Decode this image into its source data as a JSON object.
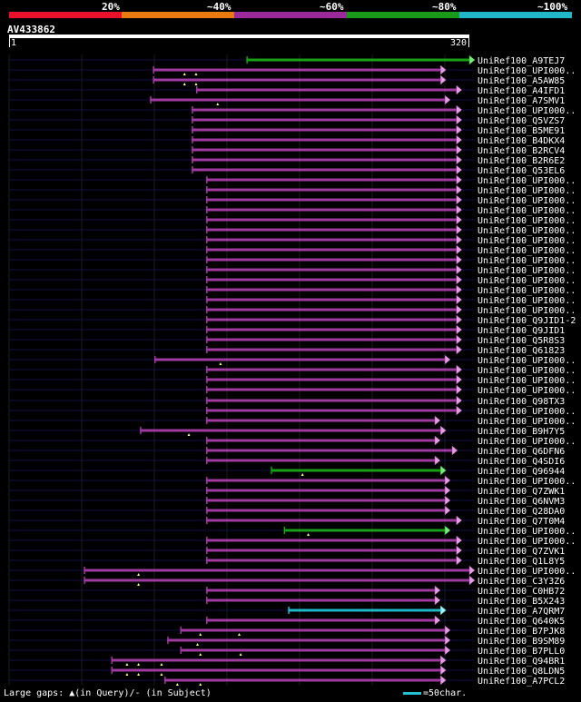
{
  "legend": {
    "labels": [
      "20%",
      "~40%",
      "~60%",
      "~80%",
      "~100%"
    ],
    "colors": [
      "#e8102a",
      "#e87a10",
      "#9a2a9a",
      "#1a9a1a",
      "#20b8c8"
    ]
  },
  "query": {
    "id": "AV433862",
    "start": "1",
    "end": "320"
  },
  "footer": {
    "gaps": "Large gaps: ▲(in Query)/- (in Subject)",
    "scale": "=50char."
  },
  "hits": [
    {
      "name": "UniRef100_A9TEJ7",
      "start": 165,
      "end": 320,
      "color": "green",
      "marks": []
    },
    {
      "name": "UniRef100_UPI000..",
      "start": 100,
      "end": 300,
      "color": "purple",
      "marks": [
        122,
        130
      ]
    },
    {
      "name": "UniRef100_A5AW85",
      "start": 100,
      "end": 300,
      "color": "purple",
      "marks": [
        122,
        130
      ]
    },
    {
      "name": "UniRef100_A4IFD1",
      "start": 130,
      "end": 311,
      "color": "purple",
      "marks": []
    },
    {
      "name": "UniRef100_A7SMV1",
      "start": 98,
      "end": 303,
      "color": "purple",
      "marks": [
        145
      ]
    },
    {
      "name": "UniRef100_UPI000..",
      "start": 127,
      "end": 311,
      "color": "purple",
      "marks": []
    },
    {
      "name": "UniRef100_Q5VZS7",
      "start": 127,
      "end": 311,
      "color": "purple",
      "marks": []
    },
    {
      "name": "UniRef100_B5ME91",
      "start": 127,
      "end": 311,
      "color": "purple",
      "marks": []
    },
    {
      "name": "UniRef100_B4DKX4",
      "start": 127,
      "end": 311,
      "color": "purple",
      "marks": []
    },
    {
      "name": "UniRef100_B2RCV4",
      "start": 127,
      "end": 311,
      "color": "purple",
      "marks": []
    },
    {
      "name": "UniRef100_B2R6E2",
      "start": 127,
      "end": 311,
      "color": "purple",
      "marks": []
    },
    {
      "name": "UniRef100_Q53EL6",
      "start": 127,
      "end": 311,
      "color": "purple",
      "marks": []
    },
    {
      "name": "UniRef100_UPI000..",
      "start": 137,
      "end": 311,
      "color": "purple",
      "marks": []
    },
    {
      "name": "UniRef100_UPI000..",
      "start": 137,
      "end": 311,
      "color": "purple",
      "marks": []
    },
    {
      "name": "UniRef100_UPI000..",
      "start": 137,
      "end": 311,
      "color": "purple",
      "marks": []
    },
    {
      "name": "UniRef100_UPI000..",
      "start": 137,
      "end": 311,
      "color": "purple",
      "marks": []
    },
    {
      "name": "UniRef100_UPI000..",
      "start": 137,
      "end": 311,
      "color": "purple",
      "marks": []
    },
    {
      "name": "UniRef100_UPI000..",
      "start": 137,
      "end": 311,
      "color": "purple",
      "marks": []
    },
    {
      "name": "UniRef100_UPI000..",
      "start": 137,
      "end": 311,
      "color": "purple",
      "marks": []
    },
    {
      "name": "UniRef100_UPI000..",
      "start": 137,
      "end": 311,
      "color": "purple",
      "marks": []
    },
    {
      "name": "UniRef100_UPI000..",
      "start": 137,
      "end": 311,
      "color": "purple",
      "marks": []
    },
    {
      "name": "UniRef100_UPI000..",
      "start": 137,
      "end": 311,
      "color": "purple",
      "marks": []
    },
    {
      "name": "UniRef100_UPI000..",
      "start": 137,
      "end": 311,
      "color": "purple",
      "marks": []
    },
    {
      "name": "UniRef100_UPI000..",
      "start": 137,
      "end": 311,
      "color": "purple",
      "marks": []
    },
    {
      "name": "UniRef100_UPI000..",
      "start": 137,
      "end": 311,
      "color": "purple",
      "marks": []
    },
    {
      "name": "UniRef100_UPI000..",
      "start": 137,
      "end": 311,
      "color": "purple",
      "marks": []
    },
    {
      "name": "UniRef100_Q9JID1-2",
      "start": 137,
      "end": 311,
      "color": "purple",
      "marks": []
    },
    {
      "name": "UniRef100_Q9JID1",
      "start": 137,
      "end": 311,
      "color": "purple",
      "marks": []
    },
    {
      "name": "UniRef100_Q5R8S3",
      "start": 137,
      "end": 311,
      "color": "purple",
      "marks": []
    },
    {
      "name": "UniRef100_Q61823",
      "start": 137,
      "end": 311,
      "color": "purple",
      "marks": []
    },
    {
      "name": "UniRef100_UPI000..",
      "start": 101,
      "end": 303,
      "color": "purple",
      "marks": [
        147
      ]
    },
    {
      "name": "UniRef100_UPI000..",
      "start": 137,
      "end": 311,
      "color": "purple",
      "marks": []
    },
    {
      "name": "UniRef100_UPI000..",
      "start": 137,
      "end": 311,
      "color": "purple",
      "marks": []
    },
    {
      "name": "UniRef100_UPI000..",
      "start": 137,
      "end": 311,
      "color": "purple",
      "marks": []
    },
    {
      "name": "UniRef100_Q98TX3",
      "start": 137,
      "end": 311,
      "color": "purple",
      "marks": []
    },
    {
      "name": "UniRef100_UPI000..",
      "start": 137,
      "end": 311,
      "color": "purple",
      "marks": []
    },
    {
      "name": "UniRef100_UPI000..",
      "start": 137,
      "end": 296,
      "color": "purple",
      "marks": []
    },
    {
      "name": "UniRef100_B9H7Y5",
      "start": 91,
      "end": 300,
      "color": "purple",
      "marks": [
        125
      ]
    },
    {
      "name": "UniRef100_UPI000..",
      "start": 137,
      "end": 296,
      "color": "purple",
      "marks": []
    },
    {
      "name": "UniRef100_Q6DFN6",
      "start": 137,
      "end": 308,
      "color": "purple",
      "marks": []
    },
    {
      "name": "UniRef100_Q4SDI6",
      "start": 137,
      "end": 296,
      "color": "purple",
      "marks": []
    },
    {
      "name": "UniRef100_Q96944",
      "start": 182,
      "end": 300,
      "color": "green",
      "marks": [
        204
      ]
    },
    {
      "name": "UniRef100_UPI000..",
      "start": 137,
      "end": 303,
      "color": "purple",
      "marks": []
    },
    {
      "name": "UniRef100_Q7ZWK1",
      "start": 137,
      "end": 303,
      "color": "purple",
      "marks": []
    },
    {
      "name": "UniRef100_Q6NVM3",
      "start": 137,
      "end": 303,
      "color": "purple",
      "marks": []
    },
    {
      "name": "UniRef100_Q28DA0",
      "start": 137,
      "end": 303,
      "color": "purple",
      "marks": []
    },
    {
      "name": "UniRef100_Q7T0M4",
      "start": 137,
      "end": 311,
      "color": "purple",
      "marks": []
    },
    {
      "name": "UniRef100_UPI000..",
      "start": 191,
      "end": 303,
      "color": "green",
      "marks": [
        208
      ]
    },
    {
      "name": "UniRef100_UPI000..",
      "start": 137,
      "end": 311,
      "color": "purple",
      "marks": []
    },
    {
      "name": "UniRef100_Q7ZVK1",
      "start": 137,
      "end": 311,
      "color": "purple",
      "marks": []
    },
    {
      "name": "UniRef100_Q1L8Y5",
      "start": 137,
      "end": 311,
      "color": "purple",
      "marks": []
    },
    {
      "name": "UniRef100_UPI000..",
      "start": 52,
      "end": 320,
      "color": "purple",
      "marks": [
        90
      ]
    },
    {
      "name": "UniRef100_C3Y3Z6",
      "start": 52,
      "end": 320,
      "color": "purple",
      "marks": [
        90
      ]
    },
    {
      "name": "UniRef100_C0HB72",
      "start": 137,
      "end": 296,
      "color": "purple",
      "marks": []
    },
    {
      "name": "UniRef100_B5X243",
      "start": 137,
      "end": 296,
      "color": "purple",
      "marks": []
    },
    {
      "name": "UniRef100_A7QRM7",
      "start": 194,
      "end": 300,
      "color": "cyan",
      "marks": []
    },
    {
      "name": "UniRef100_Q640K5",
      "start": 137,
      "end": 296,
      "color": "purple",
      "marks": []
    },
    {
      "name": "UniRef100_B7PJK8",
      "start": 119,
      "end": 303,
      "color": "purple",
      "marks": [
        133,
        160
      ]
    },
    {
      "name": "UniRef100_B9SM89",
      "start": 110,
      "end": 303,
      "color": "purple",
      "marks": [
        131
      ]
    },
    {
      "name": "UniRef100_B7PLL0",
      "start": 119,
      "end": 303,
      "color": "purple",
      "marks": [
        133,
        161
      ]
    },
    {
      "name": "UniRef100_Q94BR1",
      "start": 71,
      "end": 300,
      "color": "purple",
      "marks": [
        82,
        90,
        106
      ]
    },
    {
      "name": "UniRef100_Q8LDN5",
      "start": 71,
      "end": 300,
      "color": "purple",
      "marks": [
        82,
        90,
        106
      ]
    },
    {
      "name": "UniRef100_A7PCL2",
      "start": 108,
      "end": 300,
      "color": "purple",
      "marks": [
        117,
        133
      ]
    }
  ]
}
